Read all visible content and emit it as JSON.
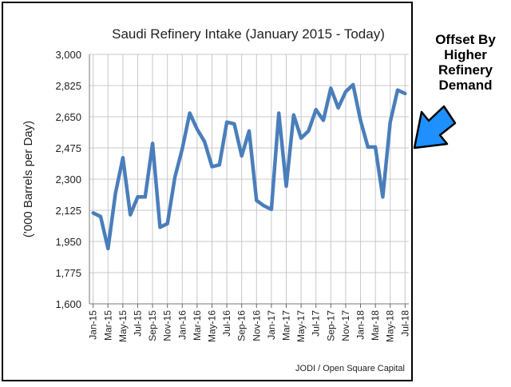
{
  "chart_data": {
    "type": "line",
    "title": "Saudi Refinery Intake (January 2015 - Today)",
    "xlabel": "",
    "ylabel": "('000 Barrels per Day)",
    "ylim": [
      1600,
      3000
    ],
    "yticks": [
      1600,
      1775,
      1950,
      2125,
      2300,
      2475,
      2650,
      2825,
      3000
    ],
    "ytick_labels": [
      "1,600",
      "1,775",
      "1,950",
      "2,125",
      "2,300",
      "2,475",
      "2,650",
      "2,825",
      "3,000"
    ],
    "xtick_labels": [
      "Jan-15",
      "Mar-15",
      "May-15",
      "Jul-15",
      "Sep-15",
      "Nov-15",
      "Jan-16",
      "Mar-16",
      "May-16",
      "Jul-16",
      "Sep-16",
      "Nov-16",
      "Jan-17",
      "Mar-17",
      "May-17",
      "Jul-17",
      "Sep-17",
      "Nov-17",
      "Jan-18",
      "Mar-18",
      "May-18",
      "Jul-18"
    ],
    "x": [
      "Jan-15",
      "Feb-15",
      "Mar-15",
      "Apr-15",
      "May-15",
      "Jun-15",
      "Jul-15",
      "Aug-15",
      "Sep-15",
      "Oct-15",
      "Nov-15",
      "Dec-15",
      "Jan-16",
      "Feb-16",
      "Mar-16",
      "Apr-16",
      "May-16",
      "Jun-16",
      "Jul-16",
      "Aug-16",
      "Sep-16",
      "Oct-16",
      "Nov-16",
      "Dec-16",
      "Jan-17",
      "Feb-17",
      "Mar-17",
      "Apr-17",
      "May-17",
      "Jun-17",
      "Jul-17",
      "Aug-17",
      "Sep-17",
      "Oct-17",
      "Nov-17",
      "Dec-17",
      "Jan-18",
      "Feb-18",
      "Mar-18",
      "Apr-18",
      "May-18",
      "Jun-18",
      "Jul-18"
    ],
    "series": [
      {
        "values": [
          2110,
          2090,
          1910,
          2220,
          2420,
          2100,
          2200,
          2200,
          2500,
          2030,
          2050,
          2310,
          2470,
          2670,
          2580,
          2510,
          2370,
          2380,
          2620,
          2610,
          2430,
          2570,
          2180,
          2150,
          2130,
          2670,
          2260,
          2660,
          2530,
          2570,
          2690,
          2630,
          2810,
          2700,
          2790,
          2830,
          2630,
          2480,
          2480,
          2200,
          2620,
          2800,
          2780
        ]
      }
    ],
    "grid": true,
    "line_color": "#4a7ebb",
    "source_note": "JODI / Open Square Capital",
    "annotation": "Offset By\nHigher\nRefinery\nDemand",
    "arrow_color": "#1e90ff"
  }
}
